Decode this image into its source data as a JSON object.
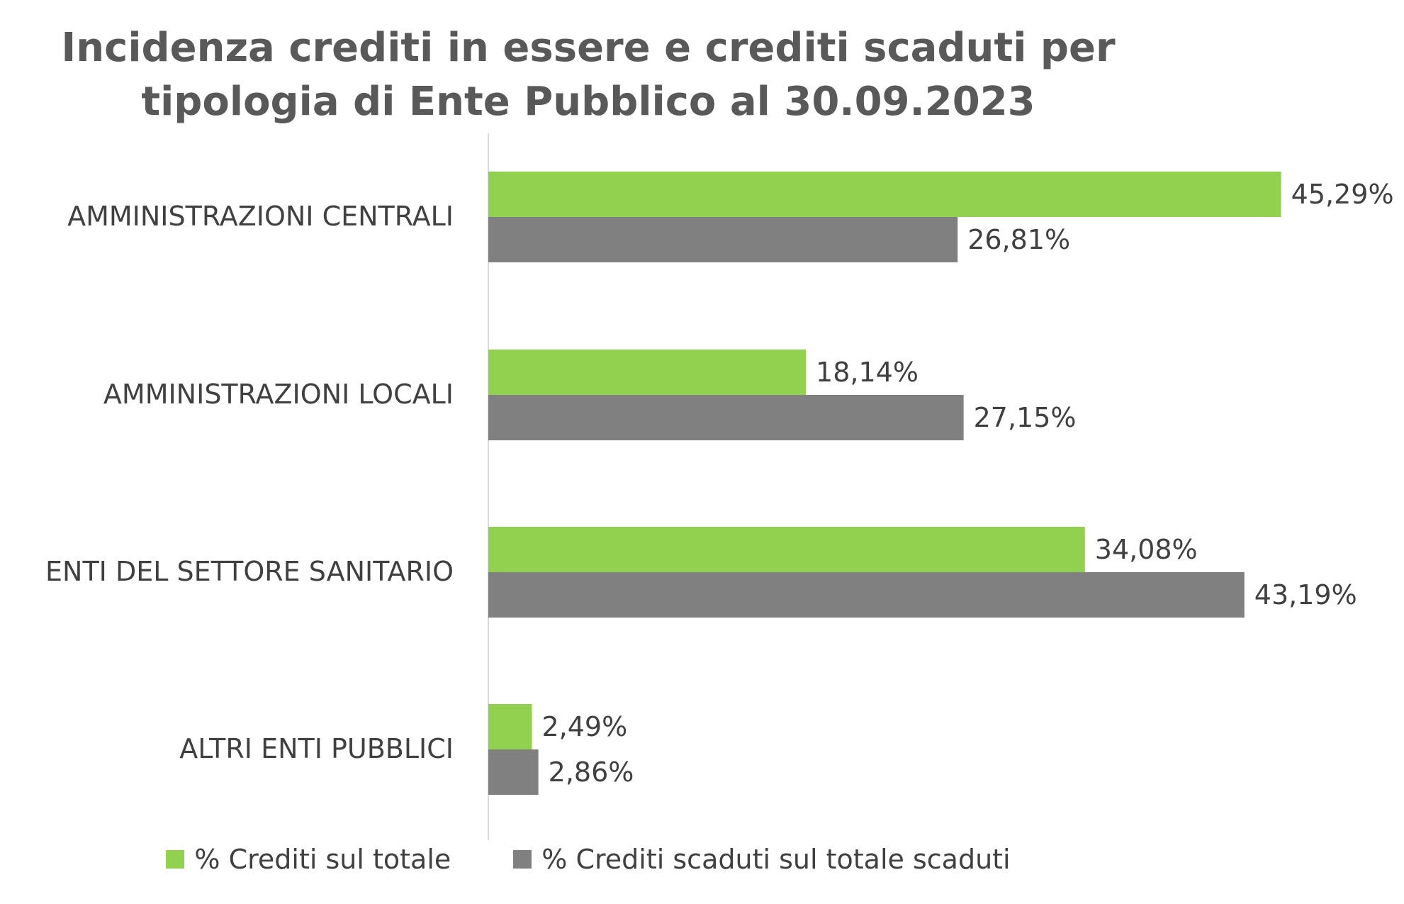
{
  "chart_data": {
    "type": "bar",
    "orientation": "horizontal",
    "title": [
      "Incidenza crediti in essere e crediti scaduti per",
      "tipologia di Ente Pubblico al 30.09.2023"
    ],
    "categories": [
      "AMMINISTRAZIONI CENTRALI",
      "AMMINISTRAZIONI LOCALI",
      "ENTI DEL SETTORE SANITARIO",
      "ALTRI ENTI PUBBLICI"
    ],
    "series": [
      {
        "name": "% Crediti sul totale",
        "color": "#92d050",
        "values": [
          45.29,
          18.14,
          34.08,
          2.49
        ],
        "labels": [
          "45,29%",
          "18,14%",
          "34,08%",
          "2,49%"
        ]
      },
      {
        "name": "% Crediti scaduti sul totale scaduti",
        "color": "#808080",
        "values": [
          26.81,
          27.15,
          43.19,
          2.86
        ],
        "labels": [
          "26,81%",
          "27,15%",
          "43,19%",
          "2,86%"
        ]
      }
    ],
    "xlim": [
      0,
      50
    ],
    "grid": false,
    "legend": "bottom"
  }
}
